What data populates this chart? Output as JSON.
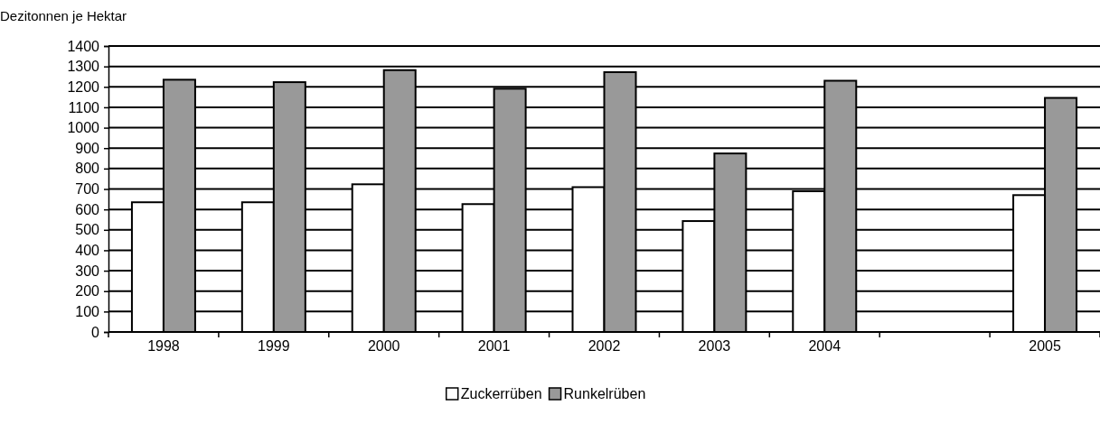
{
  "chart_data": {
    "type": "bar",
    "ylabel": "Dezitonnen je Hektar",
    "categories": [
      "1998",
      "1999",
      "2000",
      "2001",
      "2002",
      "2003",
      "2004",
      null,
      "2005"
    ],
    "series": [
      {
        "name": "Zuckerrüben",
        "color": "#ffffff",
        "values": [
          635,
          635,
          723,
          626,
          709,
          543,
          689,
          null,
          670
        ]
      },
      {
        "name": "Runkelrüben",
        "color": "#999999",
        "values": [
          1235,
          1223,
          1282,
          1191,
          1272,
          874,
          1230,
          null,
          1146
        ]
      }
    ],
    "ylim": [
      0,
      1400
    ],
    "yticks": [
      0,
      100,
      200,
      300,
      400,
      500,
      600,
      700,
      800,
      900,
      1000,
      1100,
      1200,
      1300,
      1400
    ],
    "grid": "y",
    "legend": "bottom"
  }
}
